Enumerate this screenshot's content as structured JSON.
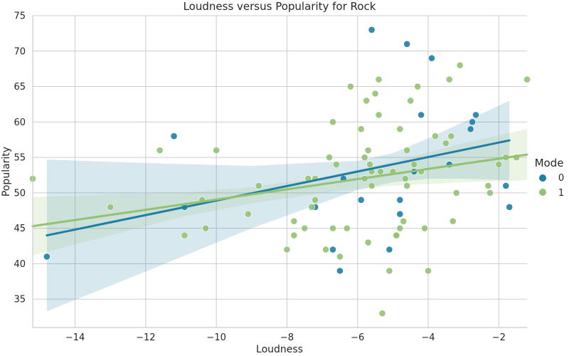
{
  "chart_data": {
    "type": "scatter",
    "title": "Loudness versus Popularity for Rock",
    "xlabel": "Loudness",
    "ylabel": "Popularity",
    "xlim": [
      -15.2,
      -1.2
    ],
    "ylim": [
      31,
      75
    ],
    "xticks": [
      -14,
      -12,
      -10,
      -8,
      -6,
      -4,
      -2
    ],
    "xtick_labels": [
      "−14",
      "−12",
      "−10",
      "−8",
      "−6",
      "−4",
      "−2"
    ],
    "yticks": [
      35,
      40,
      45,
      50,
      55,
      60,
      65,
      70,
      75
    ],
    "ytick_labels": [
      "35",
      "40",
      "45",
      "50",
      "55",
      "60",
      "65",
      "70",
      "75"
    ],
    "grid": true,
    "legend": {
      "title": "Mode",
      "placement": "right"
    },
    "series": [
      {
        "name": "0",
        "color": "#1f7ea6",
        "points": [
          [
            -14.8,
            41
          ],
          [
            -11.2,
            58
          ],
          [
            -10.9,
            48
          ],
          [
            -7.2,
            48
          ],
          [
            -6.7,
            42
          ],
          [
            -6.5,
            39
          ],
          [
            -6.4,
            52
          ],
          [
            -5.9,
            49
          ],
          [
            -5.6,
            73
          ],
          [
            -5.1,
            42
          ],
          [
            -4.8,
            49
          ],
          [
            -4.8,
            47
          ],
          [
            -4.6,
            71
          ],
          [
            -4.4,
            53
          ],
          [
            -4.2,
            61
          ],
          [
            -3.9,
            69
          ],
          [
            -3.4,
            54
          ],
          [
            -2.8,
            59
          ],
          [
            -2.75,
            60
          ],
          [
            -2.65,
            61
          ],
          [
            -1.8,
            51
          ],
          [
            -1.7,
            48
          ]
        ],
        "regression": [
          [
            -14.8,
            44.0
          ],
          [
            -1.7,
            57.4
          ]
        ],
        "ci": [
          [
            -14.8,
            33.3,
            54.7
          ],
          [
            -12,
            38.9,
            54.2
          ],
          [
            -9,
            45.0,
            53.8
          ],
          [
            -7,
            48.6,
            54.3
          ],
          [
            -6,
            50.4,
            54.5
          ],
          [
            -5,
            51.5,
            55.6
          ],
          [
            -4,
            52.0,
            57.7
          ],
          [
            -3,
            52.0,
            60.0
          ],
          [
            -1.7,
            51.8,
            63.0
          ]
        ]
      },
      {
        "name": "1",
        "color": "#94c273",
        "points": [
          [
            -15.2,
            52
          ],
          [
            -13.0,
            48
          ],
          [
            -11.6,
            56
          ],
          [
            -10.9,
            44
          ],
          [
            -10.4,
            49
          ],
          [
            -10.3,
            45
          ],
          [
            -10.0,
            56
          ],
          [
            -9.1,
            47
          ],
          [
            -8.8,
            51
          ],
          [
            -8.0,
            42
          ],
          [
            -7.8,
            46
          ],
          [
            -7.8,
            44
          ],
          [
            -7.5,
            45
          ],
          [
            -7.4,
            52
          ],
          [
            -7.3,
            48
          ],
          [
            -7.2,
            49
          ],
          [
            -7.2,
            52
          ],
          [
            -6.9,
            42
          ],
          [
            -6.8,
            55
          ],
          [
            -6.7,
            60
          ],
          [
            -6.7,
            45
          ],
          [
            -6.6,
            54
          ],
          [
            -6.5,
            41
          ],
          [
            -6.3,
            45
          ],
          [
            -6.2,
            65
          ],
          [
            -5.9,
            59
          ],
          [
            -5.8,
            55
          ],
          [
            -5.8,
            52
          ],
          [
            -5.75,
            63
          ],
          [
            -5.7,
            43
          ],
          [
            -5.7,
            56
          ],
          [
            -5.65,
            54
          ],
          [
            -5.6,
            53
          ],
          [
            -5.6,
            51
          ],
          [
            -5.5,
            64
          ],
          [
            -5.4,
            61
          ],
          [
            -5.4,
            66
          ],
          [
            -5.35,
            53
          ],
          [
            -5.3,
            33
          ],
          [
            -5.1,
            39
          ],
          [
            -5.0,
            53
          ],
          [
            -4.9,
            44
          ],
          [
            -4.9,
            44
          ],
          [
            -4.8,
            59
          ],
          [
            -4.8,
            45
          ],
          [
            -4.7,
            46
          ],
          [
            -4.65,
            52
          ],
          [
            -4.6,
            51
          ],
          [
            -4.6,
            56
          ],
          [
            -4.5,
            63
          ],
          [
            -4.4,
            54
          ],
          [
            -4.3,
            65
          ],
          [
            -4.2,
            53
          ],
          [
            -4.1,
            45
          ],
          [
            -4.0,
            39
          ],
          [
            -3.8,
            58
          ],
          [
            -3.5,
            57
          ],
          [
            -3.4,
            66
          ],
          [
            -3.35,
            58
          ],
          [
            -3.3,
            46
          ],
          [
            -3.2,
            50
          ],
          [
            -3.1,
            68
          ],
          [
            -2.3,
            51
          ],
          [
            -2.25,
            50
          ],
          [
            -2.0,
            54
          ],
          [
            -1.8,
            55
          ],
          [
            -1.5,
            55
          ],
          [
            -1.2,
            66
          ]
        ],
        "regression": [
          [
            -15.2,
            45.3
          ],
          [
            -1.2,
            55.4
          ]
        ],
        "ci": [
          [
            -15.2,
            41.2,
            49.4
          ],
          [
            -13,
            44.0,
            49.8
          ],
          [
            -11,
            46.6,
            50.0
          ],
          [
            -9,
            48.5,
            50.8
          ],
          [
            -7,
            50.0,
            52.2
          ],
          [
            -5,
            51.0,
            54.4
          ],
          [
            -3,
            51.5,
            57.0
          ],
          [
            -1.2,
            51.8,
            59.0
          ]
        ]
      }
    ]
  }
}
